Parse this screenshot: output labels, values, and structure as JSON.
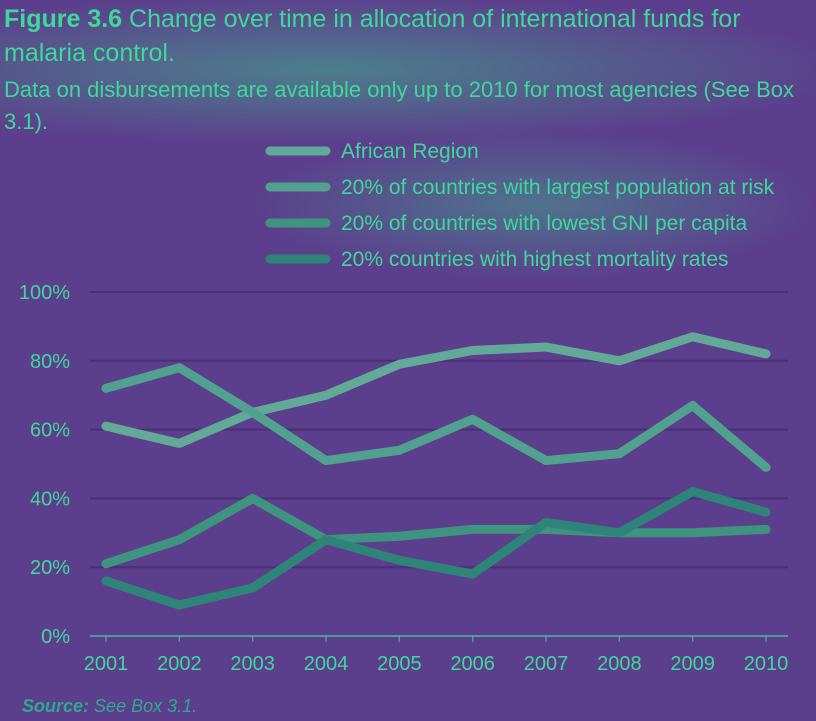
{
  "header": {
    "figure_label": "Figure 3.6",
    "title": "Change over time in allocation of international funds for malaria control.",
    "subtitle": "Data on disbursements are available only up to 2010 for most agencies (See Box 3.1)."
  },
  "source": {
    "label": "Source:",
    "text": "See Box 3.1."
  },
  "colors": {
    "background": "#5b3f8c",
    "text": "#3fd89a",
    "grid": "#4a2f76"
  },
  "chart_data": {
    "type": "line",
    "x": [
      "2001",
      "2002",
      "2003",
      "2004",
      "2005",
      "2006",
      "2007",
      "2008",
      "2009",
      "2010"
    ],
    "ylim": [
      0,
      100
    ],
    "yticks": [
      "0%",
      "20%",
      "40%",
      "60%",
      "80%",
      "100%"
    ],
    "grid": true,
    "legend_position": "top",
    "series": [
      {
        "name": "African Region",
        "color": "#63a998",
        "values": [
          61,
          56,
          65,
          70,
          79,
          83,
          84,
          80,
          87,
          82
        ]
      },
      {
        "name": "20% of countries with largest population at risk",
        "color": "#52a090",
        "values": [
          72,
          78,
          65,
          51,
          54,
          63,
          51,
          53,
          67,
          49
        ]
      },
      {
        "name": "20% of countries with lowest GNI per capita",
        "color": "#3f9480",
        "values": [
          21,
          28,
          40,
          28,
          29,
          31,
          31,
          30,
          30,
          31
        ]
      },
      {
        "name": "20% countries with highest mortality rates",
        "color": "#2e8478",
        "values": [
          16,
          9,
          14,
          28,
          22,
          18,
          33,
          30,
          42,
          36
        ]
      }
    ]
  }
}
